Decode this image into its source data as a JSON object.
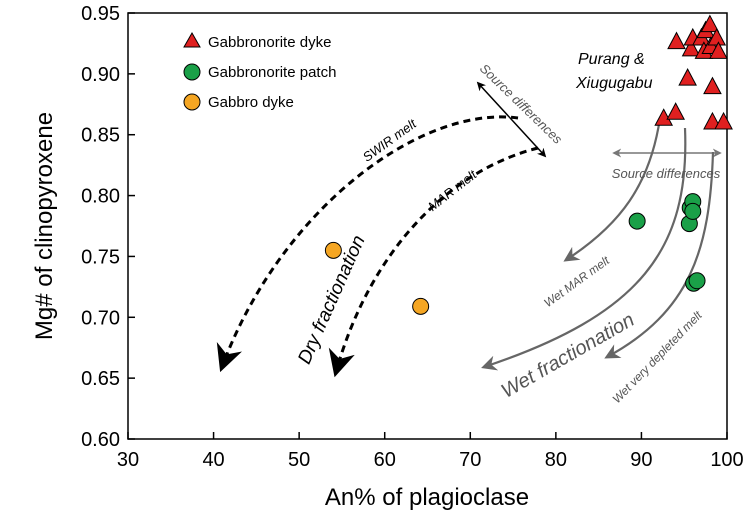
{
  "chart_data": {
    "type": "scatter",
    "xlabel": "An% of plagioclase",
    "ylabel": "Mg# of clinopyroxene",
    "xlim": [
      30,
      100
    ],
    "ylim": [
      0.6,
      0.95
    ],
    "xticks": [
      "30",
      "40",
      "50",
      "60",
      "70",
      "80",
      "90",
      "100"
    ],
    "yticks": [
      "0.60",
      "0.65",
      "0.70",
      "0.75",
      "0.80",
      "0.85",
      "0.90",
      "0.95"
    ],
    "grid": false,
    "legend_position": "top-left",
    "series": [
      {
        "name": "Gabbronorite dyke",
        "marker": "triangle",
        "color": "#e02020",
        "points": [
          [
            92.6,
            0.863
          ],
          [
            94.0,
            0.868
          ],
          [
            94.1,
            0.926
          ],
          [
            95.4,
            0.896
          ],
          [
            95.8,
            0.92
          ],
          [
            96.0,
            0.929
          ],
          [
            97.0,
            0.929
          ],
          [
            97.3,
            0.918
          ],
          [
            97.5,
            0.935
          ],
          [
            98.0,
            0.94
          ],
          [
            98.1,
            0.922
          ],
          [
            98.3,
            0.889
          ],
          [
            98.3,
            0.86
          ],
          [
            98.8,
            0.929
          ],
          [
            99.0,
            0.918
          ],
          [
            99.6,
            0.86
          ]
        ]
      },
      {
        "name": "Gabbronorite patch",
        "marker": "circle",
        "color": "#1aa048",
        "points": [
          [
            89.5,
            0.779
          ],
          [
            95.6,
            0.777
          ],
          [
            95.7,
            0.79
          ],
          [
            96.0,
            0.795
          ],
          [
            96.0,
            0.787
          ],
          [
            96.1,
            0.728
          ],
          [
            96.5,
            0.73
          ]
        ]
      },
      {
        "name": "Gabbro dyke",
        "marker": "circle",
        "color": "#f5a623",
        "points": [
          [
            54.0,
            0.755
          ],
          [
            64.2,
            0.709
          ]
        ]
      }
    ],
    "annotations": {
      "purang": [
        "Purang &",
        "Xiugugabu"
      ],
      "source_diff_diag": "Source differences",
      "source_diff_horiz": "Source differences",
      "swir": "SWIR melt",
      "mar": "MAR melt",
      "dry": "Dry fractionation",
      "wet_mar": "Wet MAR melt",
      "wet_frac": "Wet fractionation",
      "wet_depleted": "Wet very depleted melt"
    }
  }
}
